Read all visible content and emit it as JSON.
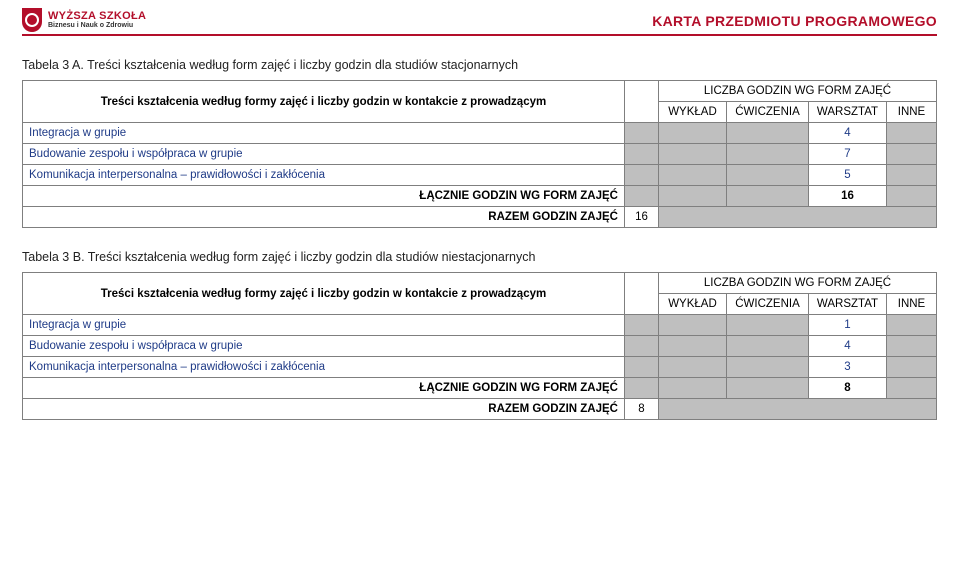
{
  "header": {
    "logo_line1": "WYŻSZA SZKOŁA",
    "logo_line2": "Biznesu i Nauk o Zdrowiu",
    "karta": "KARTA PRZEDMIOTU PROGRAMOWEGO"
  },
  "tableA": {
    "caption": "Tabela 3 A. Treści kształcenia według form zajęć i liczby godzin dla studiów stacjonarnych",
    "row_desc": "Treści kształcenia według formy zajęć i liczby godzin w kontakcie z prowadzącym",
    "liczba_header": "LICZBA GODZIN WG FORM ZAJĘĆ",
    "cols": {
      "wyklad": "WYKŁAD",
      "cwiczenia": "ĆWICZENIA",
      "warsztat": "WARSZTAT",
      "inne": "INNE"
    },
    "rows": [
      {
        "label": "Integracja w grupie",
        "warsztat": "4"
      },
      {
        "label": "Budowanie zespołu i współpraca w grupie",
        "warsztat": "7"
      },
      {
        "label": "Komunikacja interpersonalna – prawidłowości i zakłócenia",
        "warsztat": "5"
      }
    ],
    "lacznie_label": "ŁĄCZNIE GODZIN WG FORM ZAJĘĆ",
    "lacznie_warsztat": "16",
    "razem_label": "RAZEM GODZIN ZAJĘĆ",
    "razem_value": "16"
  },
  "tableB": {
    "caption": "Tabela 3 B. Treści kształcenia według form zajęć i liczby godzin dla studiów niestacjonarnych",
    "row_desc": "Treści kształcenia według formy zajęć i liczby godzin w kontakcie z prowadzącym",
    "liczba_header": "LICZBA GODZIN WG FORM ZAJĘĆ",
    "cols": {
      "wyklad": "WYKŁAD",
      "cwiczenia": "ĆWICZENIA",
      "warsztat": "WARSZTAT",
      "inne": "INNE"
    },
    "rows": [
      {
        "label": "Integracja w grupie",
        "warsztat": "1"
      },
      {
        "label": "Budowanie zespołu i współpraca w grupie",
        "warsztat": "4"
      },
      {
        "label": "Komunikacja interpersonalna – prawidłowości i zakłócenia",
        "warsztat": "3"
      }
    ],
    "lacznie_label": "ŁĄCZNIE GODZIN WG FORM ZAJĘĆ",
    "lacznie_warsztat": "8",
    "razem_label": "RAZEM GODZIN ZAJĘĆ",
    "razem_value": "8"
  }
}
